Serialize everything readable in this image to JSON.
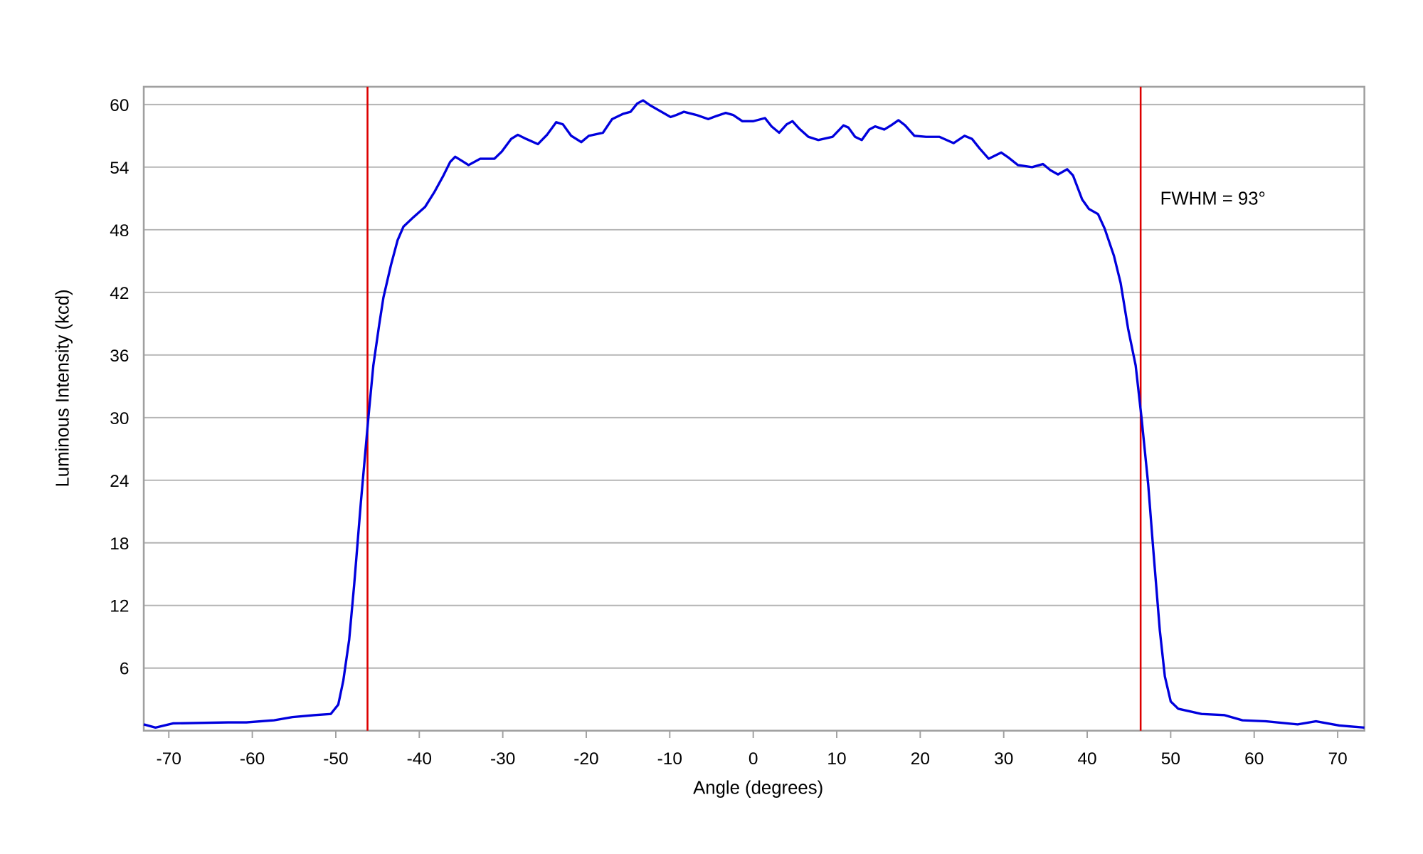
{
  "chart_data": {
    "type": "line",
    "title": "",
    "xlabel": "Angle (degrees)",
    "ylabel": "Luminous Intensity (kcd)",
    "xlim": [
      -73,
      73.2
    ],
    "ylim": [
      0,
      61.7
    ],
    "xticks": [
      -70,
      -60,
      -50,
      -40,
      -30,
      -20,
      -10,
      0,
      10,
      20,
      30,
      40,
      50,
      60,
      70
    ],
    "yticks": [
      6,
      12,
      18,
      24,
      30,
      36,
      42,
      48,
      54,
      60
    ],
    "grid": "horizontal",
    "annotation": "FWHM = 93°",
    "colors": {
      "series": "#0000dd",
      "markers": "#dd0000",
      "grid": "#b4b4b4",
      "frame": "#a0a0a0"
    },
    "vertical_lines": [
      -46.2,
      46.4
    ],
    "series": [
      {
        "x": [
          -73,
          -71.6,
          -69.5,
          -62.9,
          -60.7,
          -57.4,
          -55.2,
          -52.5,
          -50.6,
          -49.7,
          -49.1,
          -48.4,
          -47.8,
          -47,
          -46.1,
          -45.5,
          -44.8,
          -44.3,
          -43.4,
          -42.6,
          -41.9,
          -40.7,
          -39.3,
          -38.2,
          -37.1,
          -36.3,
          -35.7,
          -34.9,
          -34.1,
          -32.7,
          -31,
          -30.1,
          -29,
          -28.2,
          -27.2,
          -25.8,
          -24.7,
          -23.6,
          -22.8,
          -21.8,
          -20.6,
          -19.7,
          -18,
          -16.9,
          -15.6,
          -14.7,
          -13.9,
          -13.2,
          -12.3,
          -11,
          -9.9,
          -9.2,
          -8.3,
          -6.8,
          -5.4,
          -4.4,
          -3.3,
          -2.4,
          -1.3,
          0,
          1.4,
          2.2,
          3.1,
          4,
          4.7,
          5.5,
          6.6,
          7.8,
          9.5,
          10.8,
          11.4,
          12.2,
          13,
          13.9,
          14.6,
          15.7,
          16.5,
          17.4,
          18.2,
          19.3,
          20.7,
          22.3,
          24,
          25.3,
          26.2,
          27.1,
          28.2,
          29.7,
          30.6,
          31.7,
          33.4,
          34.7,
          35.6,
          36.5,
          37.6,
          38.3,
          39.4,
          40.2,
          41.3,
          42.1,
          43.2,
          44,
          44.9,
          45.8,
          46.5,
          47.3,
          47.9,
          48.7,
          49.3,
          50,
          50.9,
          53.7,
          56.4,
          58.6,
          61.4,
          65.2,
          67.4,
          70.2,
          73.2
        ],
        "y": [
          0.6,
          0.3,
          0.7,
          0.8,
          0.8,
          1.0,
          1.3,
          1.5,
          1.6,
          2.5,
          4.8,
          8.7,
          14,
          21.9,
          30,
          35,
          38.9,
          41.5,
          44.6,
          47,
          48.3,
          49.2,
          50.2,
          51.6,
          53.2,
          54.5,
          55,
          54.6,
          54.2,
          54.8,
          54.8,
          55.5,
          56.7,
          57.1,
          56.7,
          56.2,
          57.1,
          58.3,
          58.1,
          57,
          56.4,
          57,
          57.3,
          58.6,
          59.1,
          59.3,
          60.1,
          60.4,
          59.9,
          59.3,
          58.8,
          59,
          59.3,
          59,
          58.6,
          58.9,
          59.2,
          59,
          58.4,
          58.4,
          58.7,
          57.9,
          57.3,
          58.1,
          58.4,
          57.7,
          56.9,
          56.6,
          56.9,
          58,
          57.8,
          56.9,
          56.6,
          57.6,
          57.9,
          57.6,
          58,
          58.5,
          58,
          57,
          56.9,
          56.9,
          56.3,
          57,
          56.7,
          55.8,
          54.8,
          55.4,
          54.9,
          54.2,
          54,
          54.3,
          53.7,
          53.3,
          53.8,
          53.2,
          50.9,
          50,
          49.5,
          48.1,
          45.5,
          42.9,
          38.5,
          35,
          30,
          23.6,
          17.5,
          9.6,
          5.2,
          2.8,
          2.1,
          1.6,
          1.5,
          1.0,
          0.9,
          0.6,
          0.9,
          0.5,
          0.3
        ]
      }
    ]
  }
}
